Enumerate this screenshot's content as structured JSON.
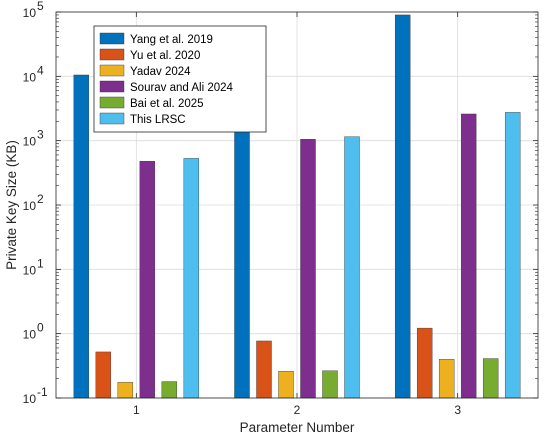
{
  "chart_data": {
    "type": "bar",
    "title": "",
    "xlabel": "Parameter Number",
    "ylabel": "Private Key Size (KB)",
    "yscale": "log",
    "ylim": [
      0.1,
      100000
    ],
    "ytick_values": [
      0.1,
      1,
      10,
      100,
      1000,
      10000,
      100000
    ],
    "ytick_base": "10",
    "ytick_exponents": [
      "-1",
      "0",
      "1",
      "2",
      "3",
      "4",
      "5"
    ],
    "categories": [
      "1",
      "2",
      "3"
    ],
    "grid": true,
    "legend_position": "top-left",
    "series": [
      {
        "name": "Yang et al. 2019",
        "color": "#0072BD",
        "values": [
          10500,
          27500,
          90000
        ]
      },
      {
        "name": "Yu et al. 2020",
        "color": "#D95319",
        "values": [
          0.52,
          0.77,
          1.22
        ]
      },
      {
        "name": "Yadav 2024",
        "color": "#EDB120",
        "values": [
          0.175,
          0.26,
          0.4
        ]
      },
      {
        "name": "Sourav and Ali 2024",
        "color": "#7E2F8E",
        "values": [
          480,
          1050,
          2600
        ]
      },
      {
        "name": "Bai et al. 2025",
        "color": "#77AC30",
        "values": [
          0.18,
          0.265,
          0.41
        ]
      },
      {
        "name": "This LRSC",
        "color": "#4DBEEE",
        "values": [
          530,
          1150,
          2750
        ]
      }
    ]
  }
}
